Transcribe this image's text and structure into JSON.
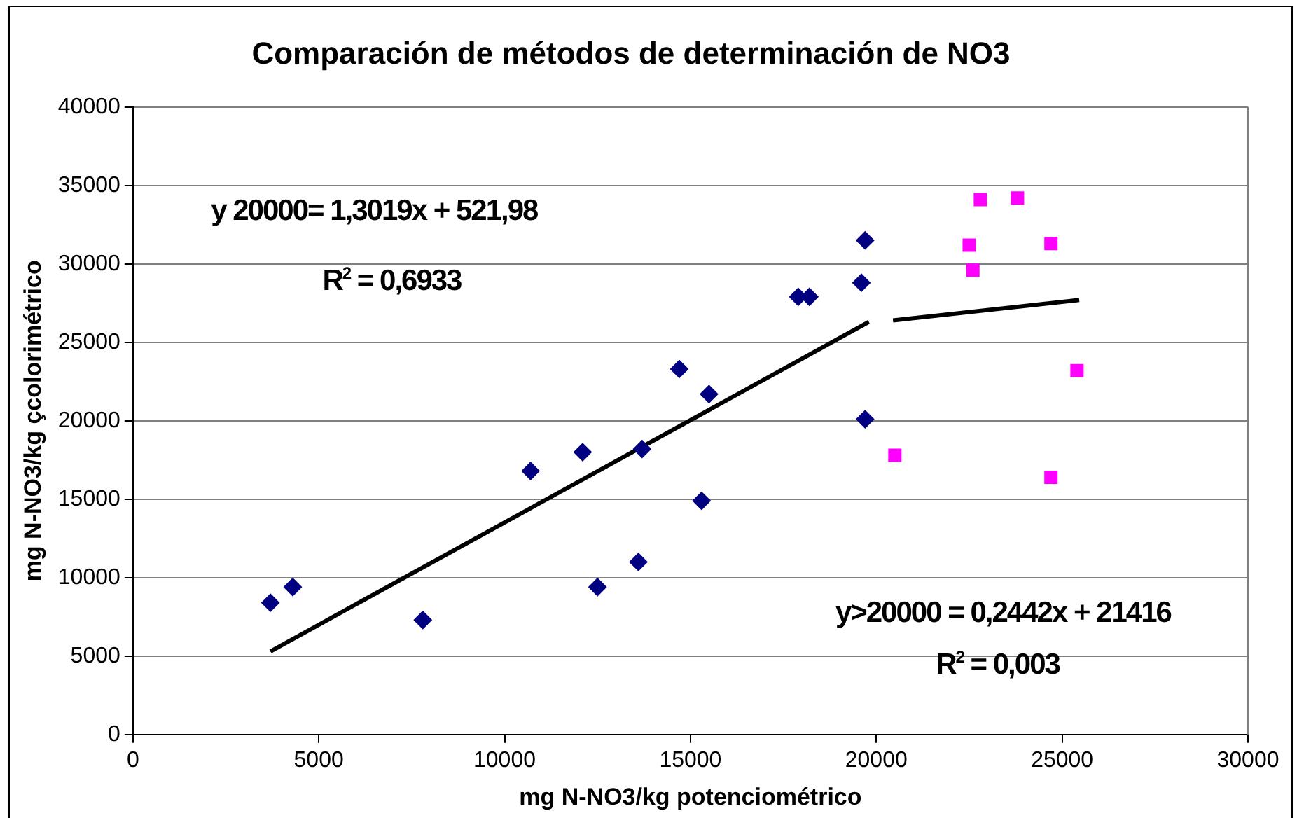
{
  "chart_data": {
    "type": "scatter",
    "title": "Comparación de métodos de determinación de NO3",
    "xlabel": "mg N-NO3/kg potenciométrico",
    "ylabel": "mg N-NO3/kg çcolorimétrico",
    "xlim": [
      0,
      30000
    ],
    "xticks": [
      0,
      5000,
      10000,
      15000,
      20000,
      25000,
      30000
    ],
    "ylim": [
      0,
      40000
    ],
    "yticks": [
      0,
      5000,
      10000,
      15000,
      20000,
      25000,
      30000,
      35000,
      40000
    ],
    "grid": "y",
    "legend": false,
    "annotations": [
      "y 20000= 1,3019x + 521,98",
      "R$^{2}$ = 0,6933",
      "y>20000 = 0,2442x + 21416",
      "R$^{2}$ = 0,003"
    ],
    "series": [
      {
        "type": "scatter",
        "color": "#000080",
        "marker": "diamond",
        "x": [
          3700,
          4300,
          7800,
          10700,
          12100,
          12500,
          13700,
          13600,
          14700,
          15300,
          15500,
          17900,
          18200,
          19600,
          19700,
          19700
        ],
        "values": [
          8400,
          9400,
          7300,
          16800,
          18000,
          9400,
          18200,
          11000,
          23300,
          14900,
          21700,
          27900,
          27900,
          28800,
          31500,
          20100
        ]
      },
      {
        "type": "scatter",
        "color": "#ff00ff",
        "marker": "square",
        "x": [
          20500,
          22500,
          22600,
          22800,
          23800,
          24700,
          24700,
          25400
        ],
        "values": [
          17800,
          31200,
          29600,
          34100,
          34200,
          31300,
          16400,
          23200
        ]
      },
      {
        "type": "line",
        "color": "#000000",
        "marker": "none",
        "x": [
          3700,
          19800
        ],
        "values": [
          5300,
          26300
        ]
      },
      {
        "type": "line",
        "color": "#000000",
        "marker": "none",
        "x": [
          20450,
          25460
        ],
        "values": [
          26400,
          27700
        ]
      }
    ]
  }
}
